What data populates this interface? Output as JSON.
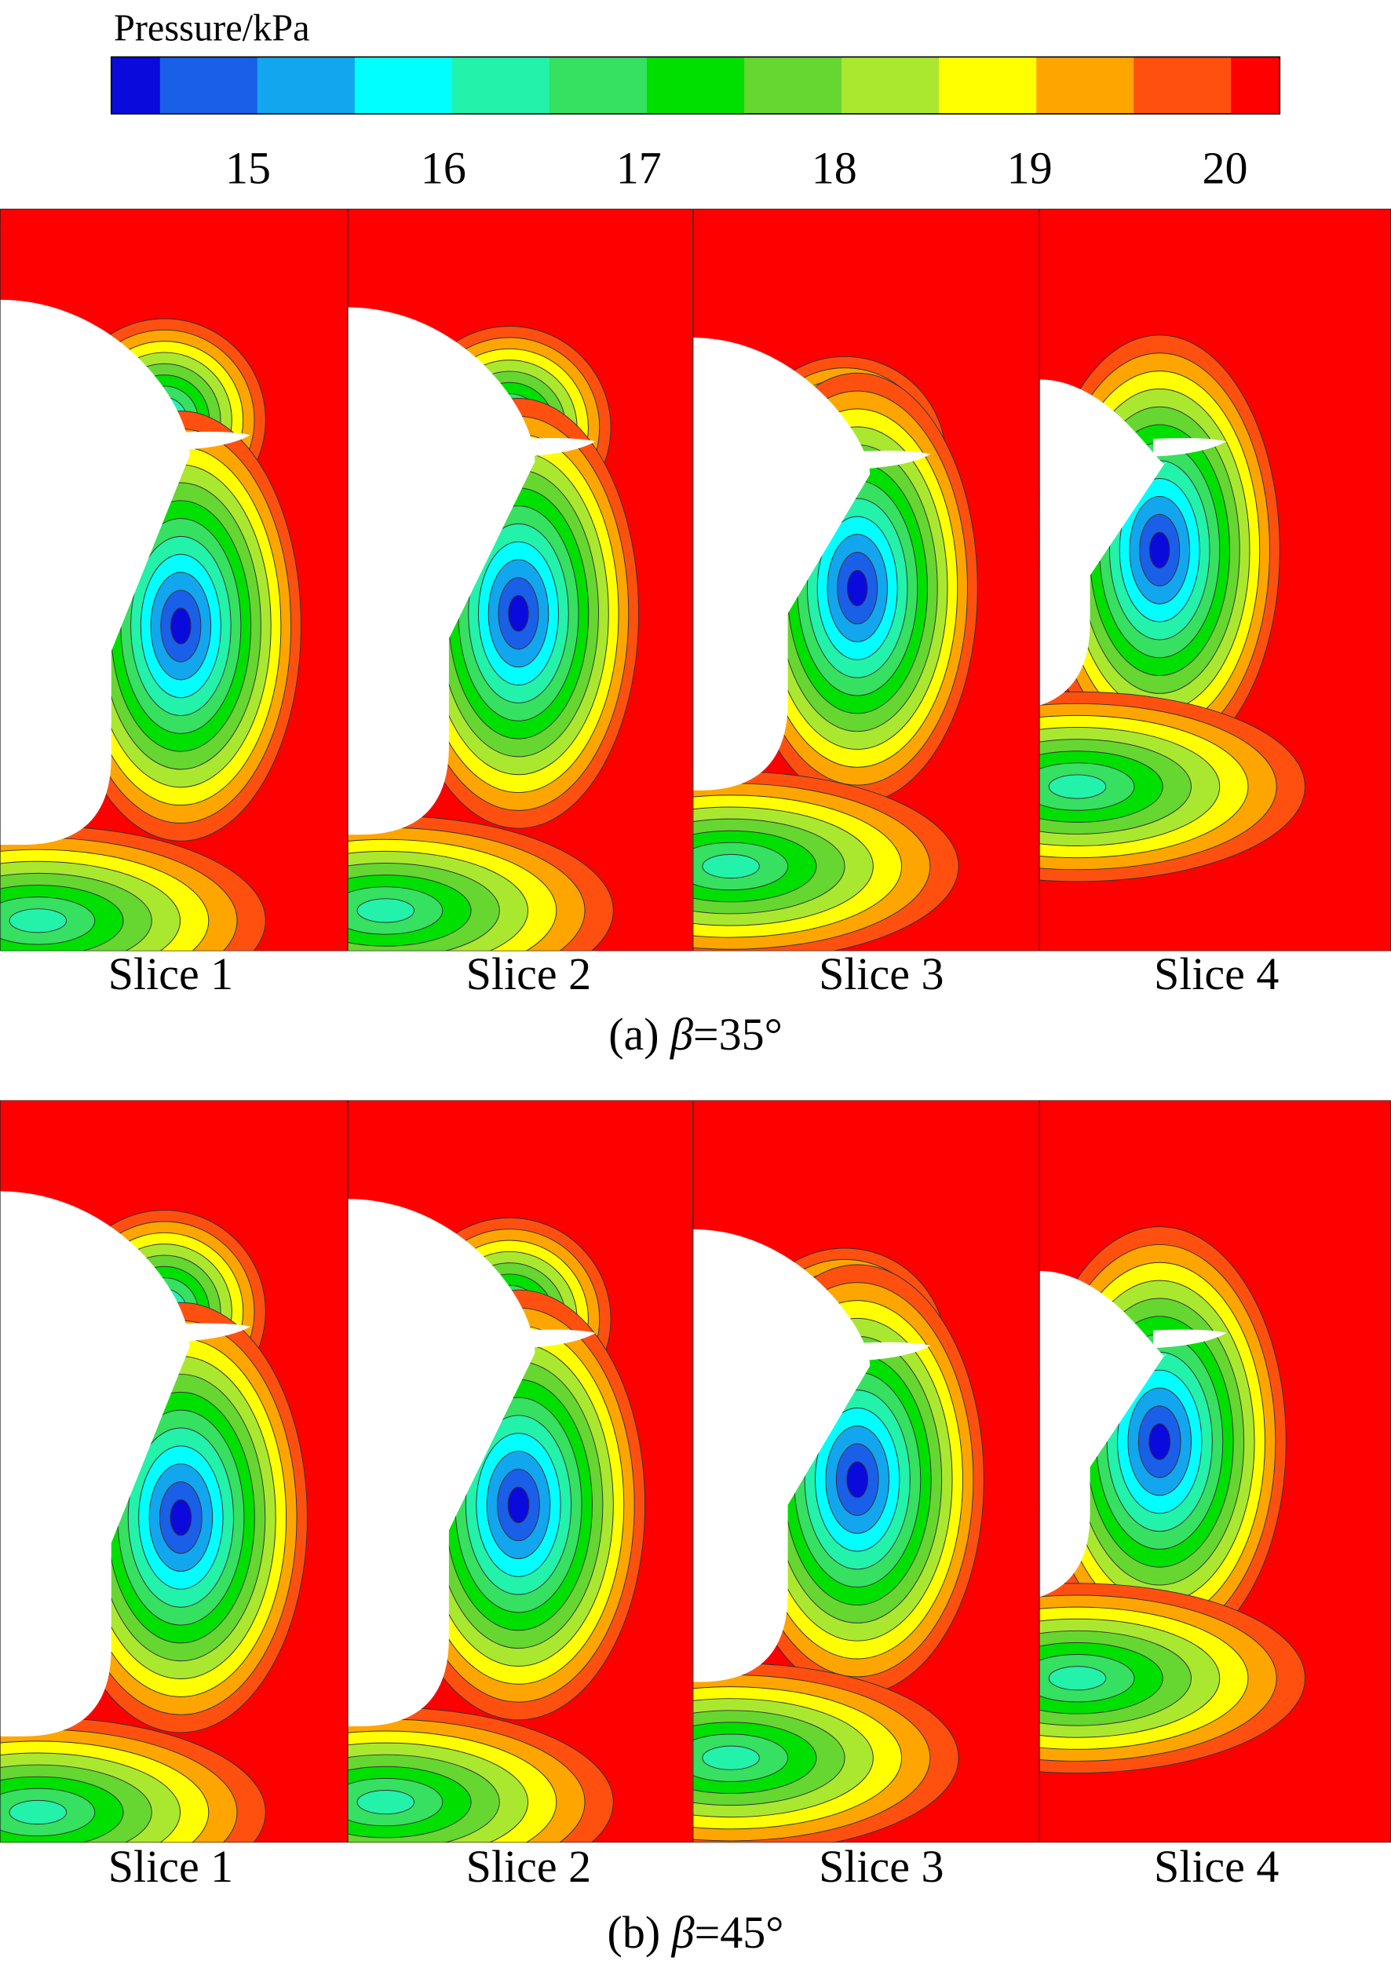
{
  "colorbar": {
    "title": "Pressure/kPa",
    "ticks": [
      15,
      16,
      17,
      18,
      19,
      20
    ],
    "clim": [
      14.3,
      20.28
    ],
    "colors": [
      "#0a0adc",
      "#1a5fe8",
      "#12a6ee",
      "#00ffff",
      "#22f2aa",
      "#36e060",
      "#00e000",
      "#66d630",
      "#aae830",
      "#ffff00",
      "#ffa500",
      "#ff5010",
      "#ff0000"
    ]
  },
  "panels": [
    {
      "caption": {
        "label": "(a)",
        "symbol": "β",
        "value": "=35°"
      },
      "slices": [
        "Slice 1",
        "Slice 2",
        "Slice 3",
        "Slice 4"
      ]
    },
    {
      "caption": {
        "label": "(b)",
        "symbol": "β",
        "value": "=45°"
      },
      "slices": [
        "Slice 1",
        "Slice 2",
        "Slice 3",
        "Slice 4"
      ]
    }
  ]
}
